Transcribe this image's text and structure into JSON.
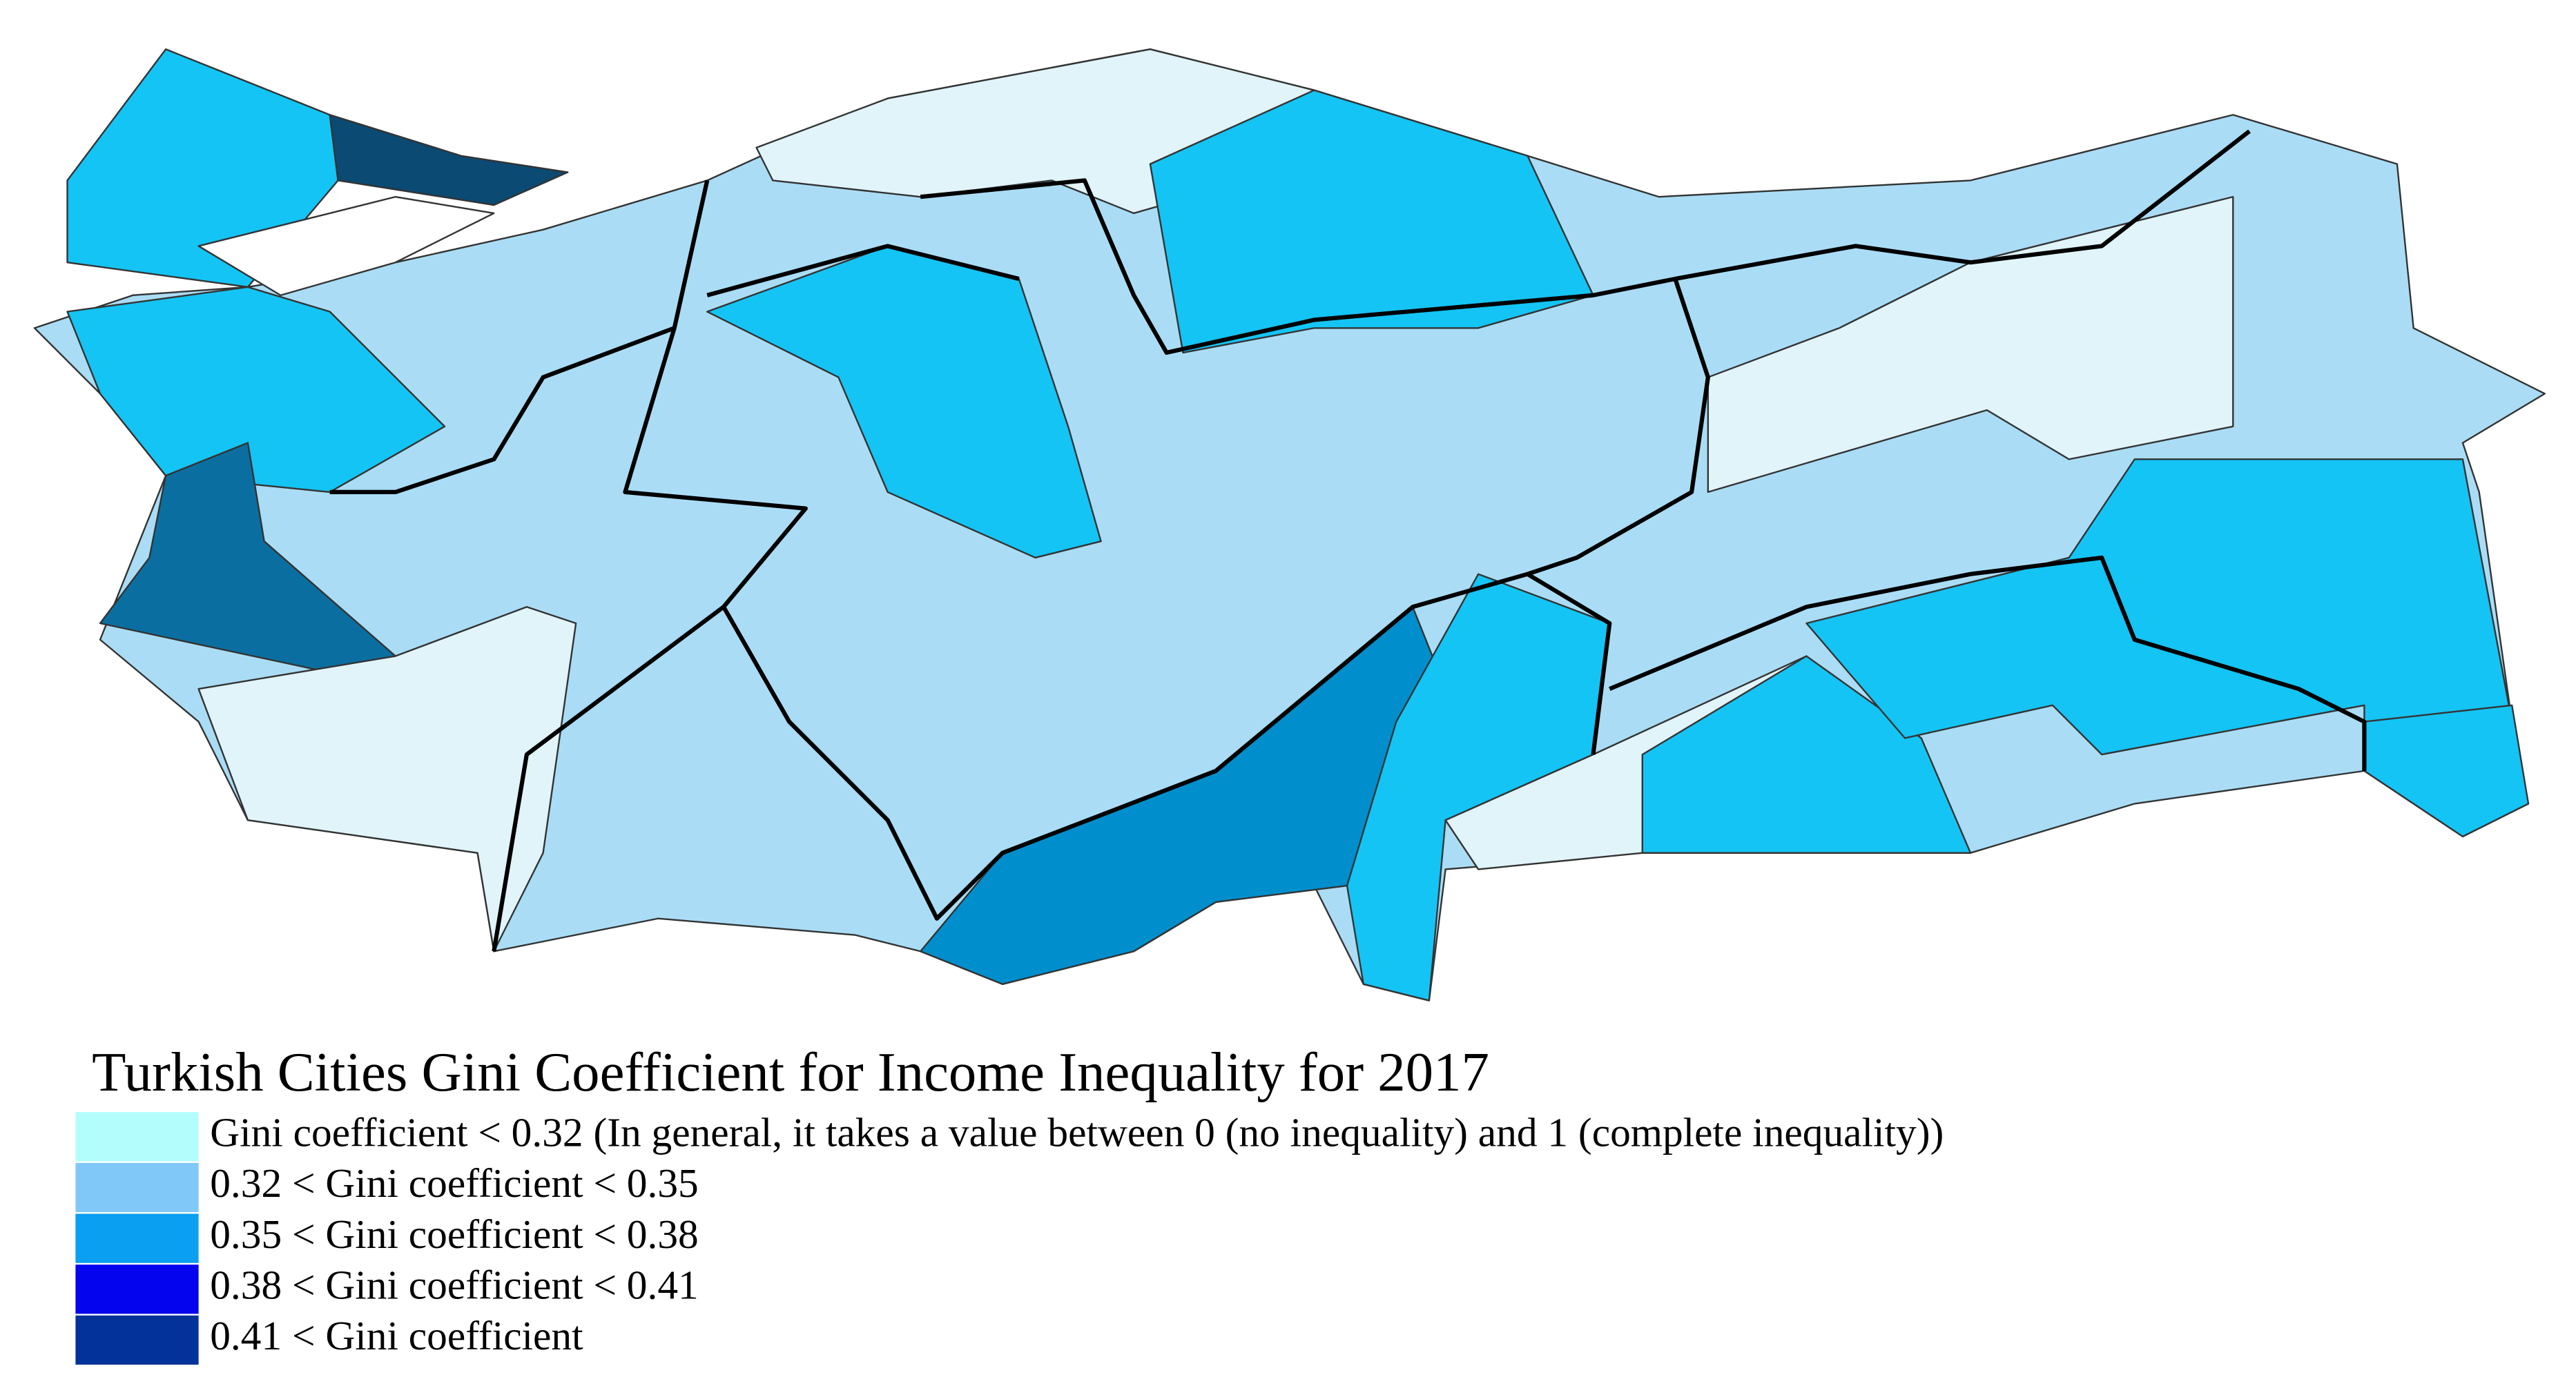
{
  "title": "Turkish Cities Gini Coefficient for Income Inequality for 2017",
  "legend": [
    {
      "label": "Gini coefficient < 0.32 (In general, it takes a value between 0 (no inequality) and 1 (complete inequality))",
      "color": "#b3fdfd"
    },
    {
      "label": "0.32 < Gini coefficient < 0.35",
      "color": "#80c8f8"
    },
    {
      "label": "0.35 < Gini coefficient < 0.38",
      "color": "#0a9ff0"
    },
    {
      "label": "0.38 < Gini coefficient < 0.41",
      "color": "#0404ee"
    },
    {
      "label": "0.41 < Gini coefficient",
      "color": "#03339a"
    }
  ]
}
